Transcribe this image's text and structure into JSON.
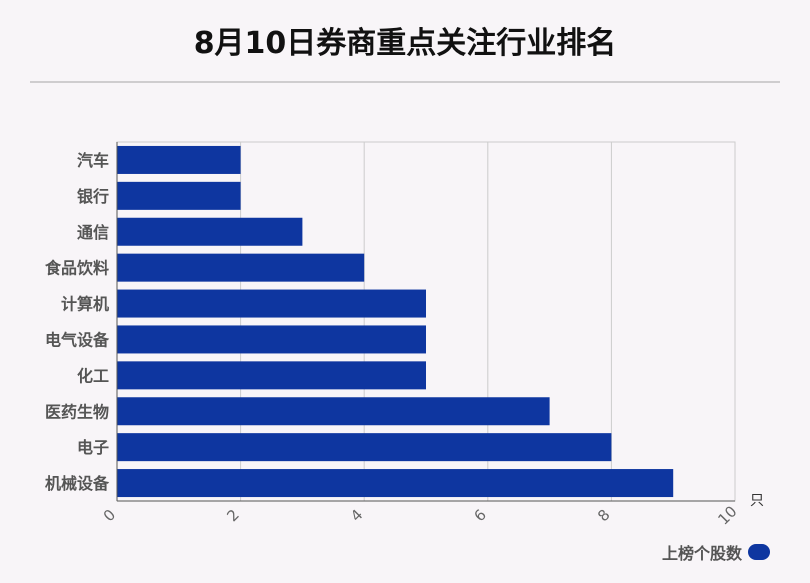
{
  "title": "8月10日券商重点关注行业排名",
  "chart_data": {
    "type": "bar",
    "orientation": "horizontal",
    "categories": [
      "汽车",
      "银行",
      "通信",
      "食品饮料",
      "计算机",
      "电气设备",
      "化工",
      "医药生物",
      "电子",
      "机械设备"
    ],
    "series": [
      {
        "name": "上榜个股数",
        "values": [
          2,
          2,
          3,
          4,
          5,
          5,
          5,
          7,
          8,
          9
        ],
        "color": "#0e36a0"
      }
    ],
    "xlim": [
      0,
      10
    ],
    "xticks": [
      0,
      2,
      4,
      6,
      8,
      10
    ],
    "xunit": "只",
    "grid": true,
    "legend_position": "bottom-right"
  }
}
